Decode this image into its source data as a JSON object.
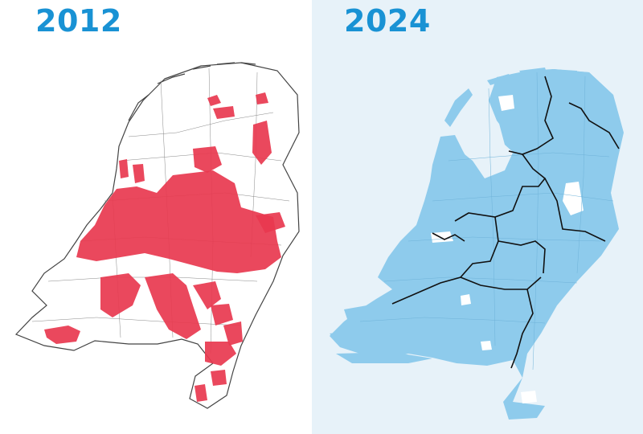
{
  "panels": [
    {
      "year": "2012",
      "fill_color": "#e8384f",
      "outline_color": "#333333"
    },
    {
      "year": "2024",
      "fill_color": "#8ecbec",
      "region_border_color": "#111111"
    }
  ],
  "colors": {
    "title": "#1992d4",
    "right_background": "#e7f2f9"
  }
}
